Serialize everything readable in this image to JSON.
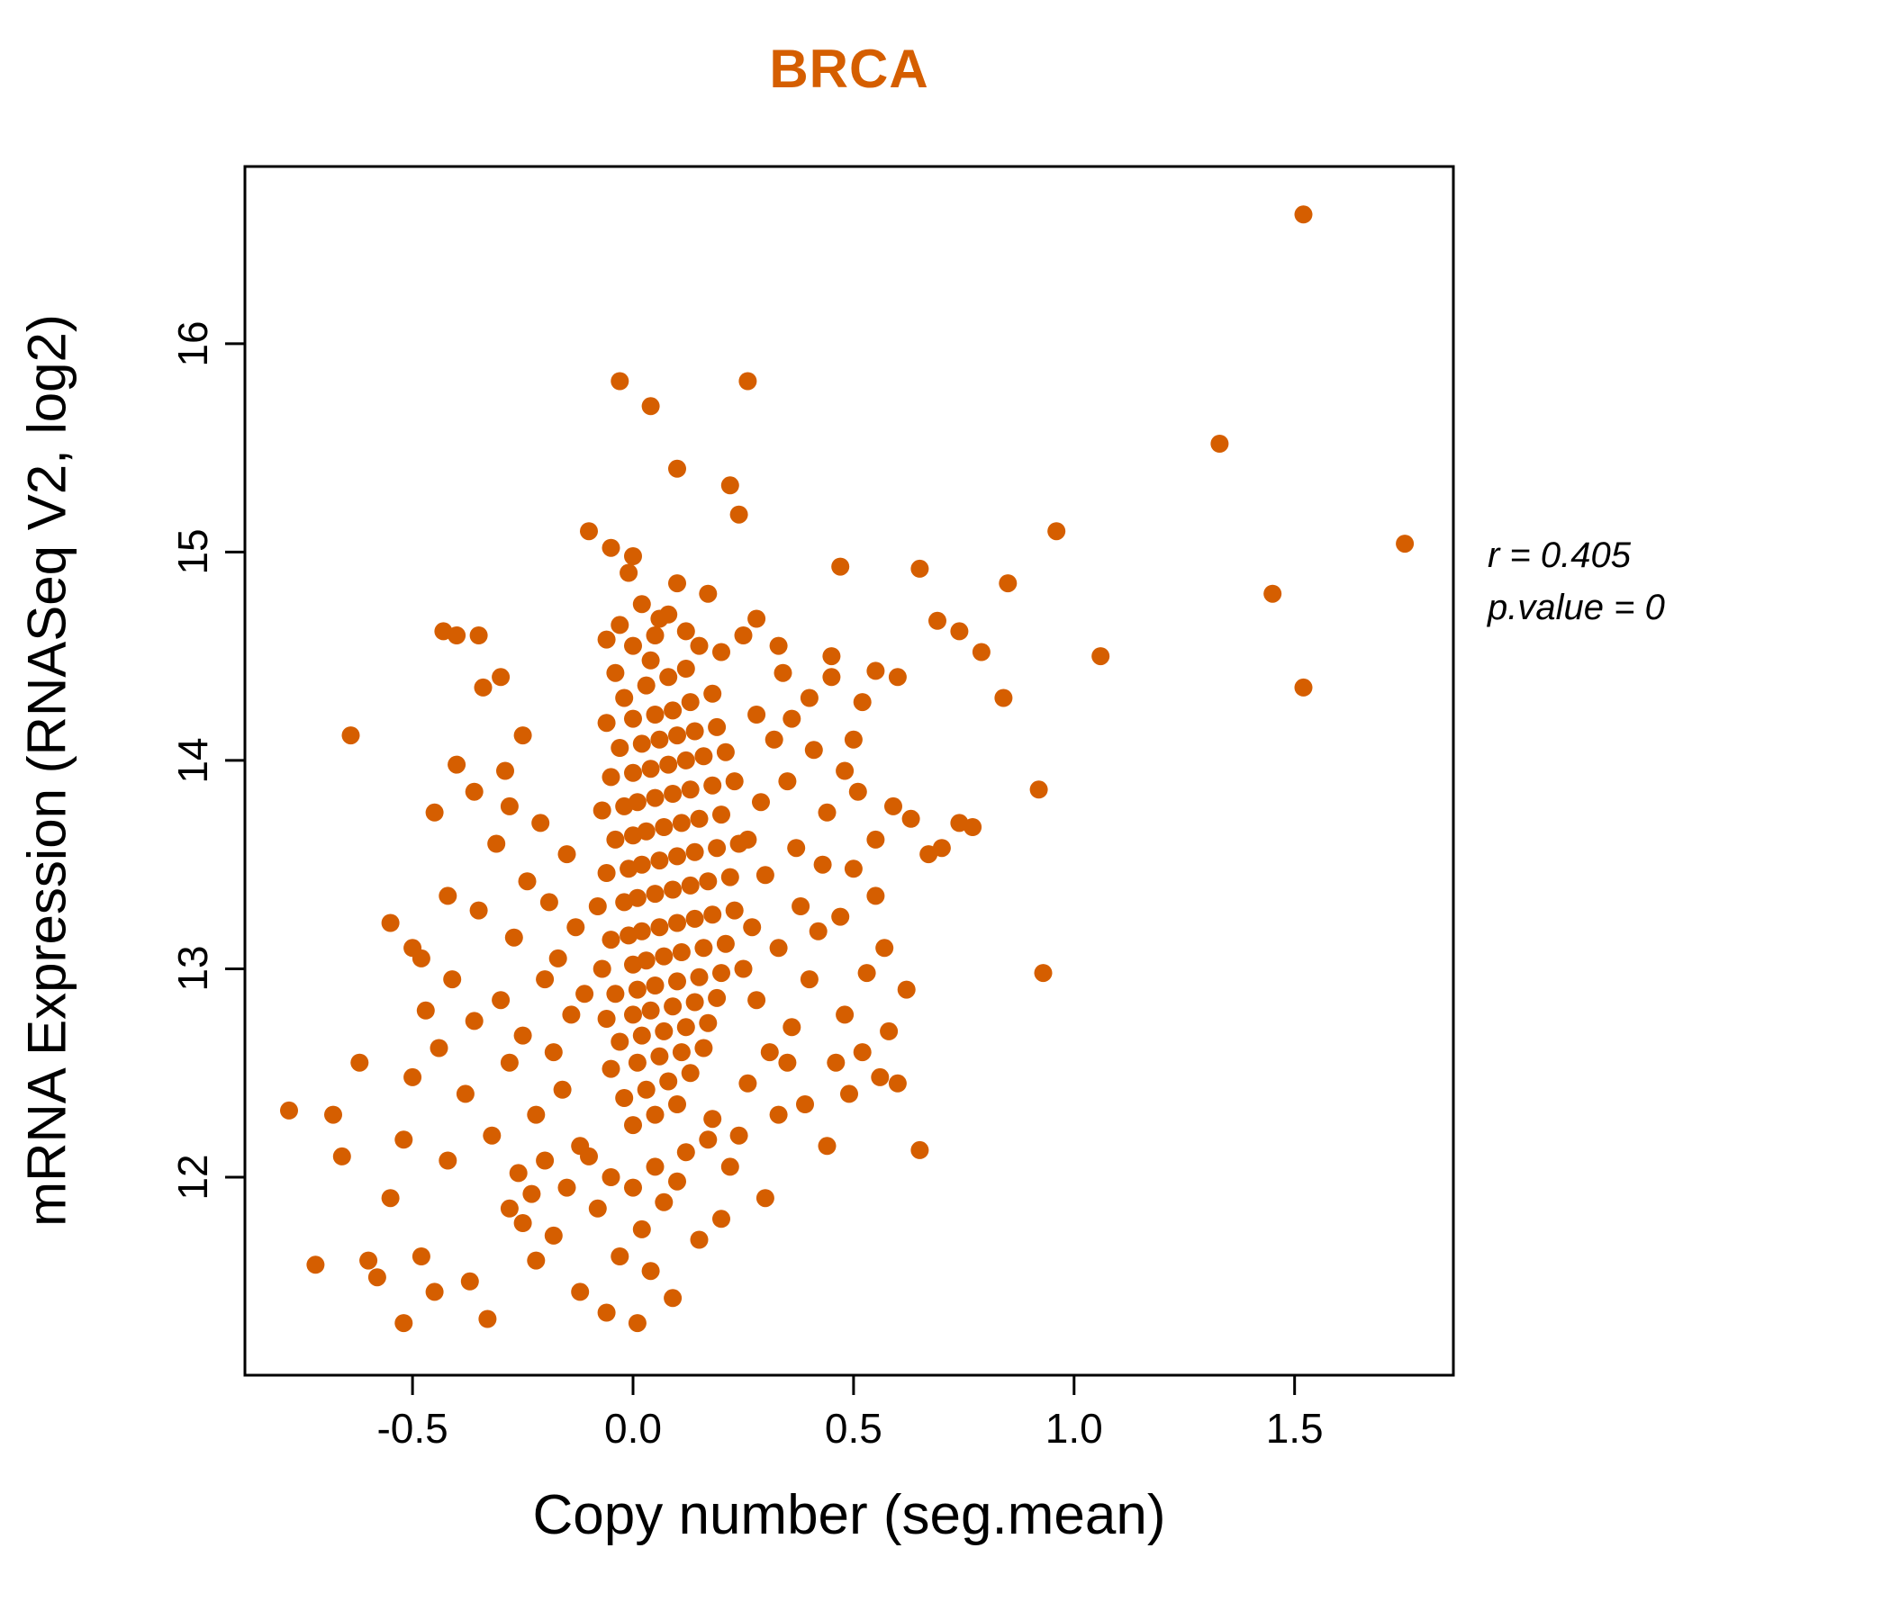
{
  "title": "BRCA",
  "annotation": {
    "line1": "r = 0.405",
    "line2": "p.value = 0"
  },
  "chart_data": {
    "type": "scatter",
    "title": "BRCA",
    "title_color": "#D55E00",
    "xlabel": "Copy number (seg.mean)",
    "ylabel": "mRNA Expression (RNASeq V2, log2)",
    "xlim": [
      -0.88,
      1.86
    ],
    "ylim": [
      11.05,
      16.85
    ],
    "xticks": [
      -0.5,
      0.0,
      0.5,
      1.0,
      1.5
    ],
    "xtick_labels": [
      "-0.5",
      "0.0",
      "0.5",
      "1.0",
      "1.5"
    ],
    "yticks": [
      12,
      13,
      14,
      15,
      16
    ],
    "ytick_labels": [
      "12",
      "13",
      "14",
      "15",
      "16"
    ],
    "grid": false,
    "point_color": "#D55E00",
    "point_radius": 10,
    "stats": {
      "r": 0.405,
      "p_value": 0
    },
    "points": [
      [
        1.52,
        16.62
      ],
      [
        0.26,
        15.82
      ],
      [
        -0.03,
        15.82
      ],
      [
        0.04,
        15.7
      ],
      [
        1.33,
        15.52
      ],
      [
        0.1,
        15.4
      ],
      [
        0.22,
        15.32
      ],
      [
        0.24,
        15.18
      ],
      [
        0.96,
        15.1
      ],
      [
        1.75,
        15.04
      ],
      [
        -0.1,
        15.1
      ],
      [
        -0.05,
        15.02
      ],
      [
        0.0,
        14.98
      ],
      [
        0.47,
        14.93
      ],
      [
        1.45,
        14.8
      ],
      [
        0.65,
        14.92
      ],
      [
        0.17,
        14.8
      ],
      [
        0.74,
        14.62
      ],
      [
        0.69,
        14.67
      ],
      [
        1.52,
        14.35
      ],
      [
        1.06,
        14.5
      ],
      [
        0.79,
        14.52
      ],
      [
        0.85,
        14.85
      ],
      [
        0.84,
        14.3
      ],
      [
        0.92,
        13.86
      ],
      [
        0.93,
        12.98
      ],
      [
        0.67,
        13.55
      ],
      [
        0.74,
        13.7
      ],
      [
        0.6,
        14.4
      ],
      [
        0.55,
        14.43
      ],
      [
        0.52,
        14.28
      ],
      [
        0.59,
        13.78
      ],
      [
        0.63,
        13.72
      ],
      [
        0.57,
        13.1
      ],
      [
        0.62,
        12.9
      ],
      [
        0.65,
        12.13
      ],
      [
        0.6,
        12.45
      ],
      [
        0.52,
        12.6
      ],
      [
        0.55,
        13.35
      ],
      [
        0.5,
        13.48
      ],
      [
        0.53,
        12.98
      ],
      [
        0.7,
        13.58
      ],
      [
        0.48,
        12.78
      ],
      [
        0.46,
        12.55
      ],
      [
        0.77,
        13.68
      ],
      [
        -0.78,
        12.32
      ],
      [
        -0.72,
        11.58
      ],
      [
        -0.68,
        12.3
      ],
      [
        -0.66,
        12.1
      ],
      [
        -0.64,
        14.12
      ],
      [
        -0.62,
        12.55
      ],
      [
        -0.58,
        11.52
      ],
      [
        -0.55,
        11.9
      ],
      [
        -0.52,
        12.18
      ],
      [
        -0.5,
        13.1
      ],
      [
        -0.48,
        13.05
      ],
      [
        -0.47,
        12.8
      ],
      [
        -0.45,
        11.45
      ],
      [
        -0.44,
        12.62
      ],
      [
        -0.43,
        14.62
      ],
      [
        -0.4,
        14.6
      ],
      [
        -0.42,
        13.35
      ],
      [
        -0.41,
        12.95
      ],
      [
        -0.38,
        12.4
      ],
      [
        -0.37,
        11.5
      ],
      [
        -0.36,
        12.75
      ],
      [
        -0.35,
        13.28
      ],
      [
        -0.34,
        14.35
      ],
      [
        -0.33,
        11.32
      ],
      [
        -0.32,
        12.2
      ],
      [
        -0.31,
        13.6
      ],
      [
        -0.3,
        12.85
      ],
      [
        -0.29,
        13.95
      ],
      [
        -0.28,
        12.55
      ],
      [
        -0.27,
        13.15
      ],
      [
        -0.26,
        12.02
      ],
      [
        -0.25,
        12.68
      ],
      [
        -0.24,
        13.42
      ],
      [
        -0.23,
        11.92
      ],
      [
        -0.22,
        12.3
      ],
      [
        -0.21,
        13.7
      ],
      [
        -0.2,
        12.95
      ],
      [
        -0.19,
        13.32
      ],
      [
        -0.18,
        12.6
      ],
      [
        -0.17,
        13.05
      ],
      [
        -0.16,
        12.42
      ],
      [
        -0.15,
        13.55
      ],
      [
        -0.14,
        12.78
      ],
      [
        -0.13,
        13.2
      ],
      [
        -0.12,
        11.45
      ],
      [
        -0.11,
        12.88
      ],
      [
        -0.35,
        14.6
      ],
      [
        -0.4,
        13.98
      ],
      [
        -0.3,
        14.4
      ],
      [
        -0.25,
        14.12
      ],
      [
        -0.45,
        13.75
      ],
      [
        -0.5,
        12.48
      ],
      [
        -0.55,
        13.22
      ],
      [
        -0.48,
        11.62
      ],
      [
        -0.52,
        11.3
      ],
      [
        -0.6,
        11.6
      ],
      [
        -0.36,
        13.85
      ],
      [
        -0.42,
        12.08
      ],
      [
        -0.28,
        13.78
      ],
      [
        0.0,
        12.25
      ],
      [
        0.05,
        12.3
      ],
      [
        0.1,
        12.35
      ],
      [
        -0.02,
        12.38
      ],
      [
        0.03,
        12.42
      ],
      [
        0.08,
        12.46
      ],
      [
        0.13,
        12.5
      ],
      [
        -0.05,
        12.52
      ],
      [
        0.01,
        12.55
      ],
      [
        0.06,
        12.58
      ],
      [
        0.11,
        12.6
      ],
      [
        0.16,
        12.62
      ],
      [
        -0.03,
        12.65
      ],
      [
        0.02,
        12.68
      ],
      [
        0.07,
        12.7
      ],
      [
        0.12,
        12.72
      ],
      [
        0.17,
        12.74
      ],
      [
        -0.06,
        12.76
      ],
      [
        0.0,
        12.78
      ],
      [
        0.04,
        12.8
      ],
      [
        0.09,
        12.82
      ],
      [
        0.14,
        12.84
      ],
      [
        0.19,
        12.86
      ],
      [
        -0.04,
        12.88
      ],
      [
        0.01,
        12.9
      ],
      [
        0.05,
        12.92
      ],
      [
        0.1,
        12.94
      ],
      [
        0.15,
        12.96
      ],
      [
        0.2,
        12.98
      ],
      [
        -0.07,
        13.0
      ],
      [
        0.0,
        13.02
      ],
      [
        0.03,
        13.04
      ],
      [
        0.07,
        13.06
      ],
      [
        0.11,
        13.08
      ],
      [
        0.16,
        13.1
      ],
      [
        0.21,
        13.12
      ],
      [
        -0.05,
        13.14
      ],
      [
        -0.01,
        13.16
      ],
      [
        0.02,
        13.18
      ],
      [
        0.06,
        13.2
      ],
      [
        0.1,
        13.22
      ],
      [
        0.14,
        13.24
      ],
      [
        0.18,
        13.26
      ],
      [
        0.23,
        13.28
      ],
      [
        -0.08,
        13.3
      ],
      [
        -0.02,
        13.32
      ],
      [
        0.01,
        13.34
      ],
      [
        0.05,
        13.36
      ],
      [
        0.09,
        13.38
      ],
      [
        0.13,
        13.4
      ],
      [
        0.17,
        13.42
      ],
      [
        0.22,
        13.44
      ],
      [
        -0.06,
        13.46
      ],
      [
        -0.01,
        13.48
      ],
      [
        0.02,
        13.5
      ],
      [
        0.06,
        13.52
      ],
      [
        0.1,
        13.54
      ],
      [
        0.14,
        13.56
      ],
      [
        0.19,
        13.58
      ],
      [
        0.24,
        13.6
      ],
      [
        -0.04,
        13.62
      ],
      [
        0.0,
        13.64
      ],
      [
        0.03,
        13.66
      ],
      [
        0.07,
        13.68
      ],
      [
        0.11,
        13.7
      ],
      [
        0.15,
        13.72
      ],
      [
        0.2,
        13.74
      ],
      [
        -0.07,
        13.76
      ],
      [
        -0.02,
        13.78
      ],
      [
        0.01,
        13.8
      ],
      [
        0.05,
        13.82
      ],
      [
        0.09,
        13.84
      ],
      [
        0.13,
        13.86
      ],
      [
        0.18,
        13.88
      ],
      [
        0.23,
        13.9
      ],
      [
        -0.05,
        13.92
      ],
      [
        0.0,
        13.94
      ],
      [
        0.04,
        13.96
      ],
      [
        0.08,
        13.98
      ],
      [
        0.12,
        14.0
      ],
      [
        0.16,
        14.02
      ],
      [
        0.21,
        14.04
      ],
      [
        -0.03,
        14.06
      ],
      [
        0.02,
        14.08
      ],
      [
        0.06,
        14.1
      ],
      [
        0.1,
        14.12
      ],
      [
        0.14,
        14.14
      ],
      [
        0.19,
        14.16
      ],
      [
        -0.06,
        14.18
      ],
      [
        0.0,
        14.2
      ],
      [
        0.05,
        14.22
      ],
      [
        0.09,
        14.24
      ],
      [
        0.13,
        14.28
      ],
      [
        0.18,
        14.32
      ],
      [
        0.03,
        14.36
      ],
      [
        0.08,
        14.4
      ],
      [
        0.12,
        14.44
      ],
      [
        0.04,
        14.48
      ],
      [
        -0.02,
        14.3
      ],
      [
        -0.04,
        14.42
      ],
      [
        0.25,
        13.0
      ],
      [
        0.27,
        13.2
      ],
      [
        0.28,
        12.85
      ],
      [
        0.3,
        13.45
      ],
      [
        0.26,
        13.62
      ],
      [
        0.29,
        13.8
      ],
      [
        0.31,
        12.6
      ],
      [
        0.33,
        13.1
      ],
      [
        0.35,
        13.9
      ],
      [
        0.32,
        14.1
      ],
      [
        0.36,
        12.72
      ],
      [
        0.38,
        13.3
      ],
      [
        0.4,
        12.95
      ],
      [
        0.34,
        14.42
      ],
      [
        0.37,
        13.58
      ],
      [
        0.42,
        13.18
      ],
      [
        0.44,
        13.75
      ],
      [
        0.39,
        12.35
      ],
      [
        0.41,
        14.05
      ],
      [
        0.45,
        14.5
      ],
      [
        0.28,
        14.22
      ],
      [
        0.3,
        11.9
      ],
      [
        0.24,
        12.2
      ],
      [
        0.26,
        12.45
      ],
      [
        0.22,
        12.05
      ],
      [
        0.2,
        11.8
      ],
      [
        0.18,
        12.28
      ],
      [
        0.35,
        12.55
      ],
      [
        0.33,
        12.3
      ],
      [
        0.43,
        13.5
      ],
      [
        -0.1,
        12.1
      ],
      [
        -0.05,
        12.0
      ],
      [
        0.0,
        11.95
      ],
      [
        0.05,
        12.05
      ],
      [
        0.1,
        11.98
      ],
      [
        -0.08,
        11.85
      ],
      [
        0.02,
        11.75
      ],
      [
        0.07,
        11.88
      ],
      [
        -0.12,
        12.15
      ],
      [
        0.12,
        12.12
      ],
      [
        -0.15,
        11.95
      ],
      [
        0.15,
        11.7
      ],
      [
        -0.03,
        11.62
      ],
      [
        0.04,
        11.55
      ],
      [
        -0.18,
        11.72
      ],
      [
        0.09,
        11.42
      ],
      [
        -0.06,
        11.35
      ],
      [
        0.01,
        11.3
      ],
      [
        -0.25,
        11.78
      ],
      [
        -0.28,
        11.85
      ],
      [
        -0.2,
        12.08
      ],
      [
        0.17,
        12.18
      ],
      [
        -0.22,
        11.6
      ],
      [
        0.0,
        14.55
      ],
      [
        0.05,
        14.6
      ],
      [
        -0.03,
        14.65
      ],
      [
        0.08,
        14.7
      ],
      [
        0.02,
        14.75
      ],
      [
        -0.06,
        14.58
      ],
      [
        0.12,
        14.62
      ],
      [
        0.15,
        14.55
      ],
      [
        0.1,
        14.85
      ],
      [
        -0.01,
        14.9
      ],
      [
        0.06,
        14.68
      ],
      [
        0.2,
        14.52
      ],
      [
        0.25,
        14.6
      ],
      [
        0.33,
        14.55
      ],
      [
        0.28,
        14.68
      ],
      [
        0.45,
        14.4
      ],
      [
        0.4,
        14.3
      ],
      [
        0.36,
        14.2
      ],
      [
        0.48,
        13.95
      ],
      [
        0.5,
        14.1
      ],
      [
        0.55,
        13.62
      ],
      [
        0.58,
        12.7
      ],
      [
        0.47,
        13.25
      ],
      [
        0.49,
        12.4
      ],
      [
        0.51,
        13.85
      ],
      [
        0.44,
        12.15
      ],
      [
        0.56,
        12.48
      ]
    ]
  }
}
